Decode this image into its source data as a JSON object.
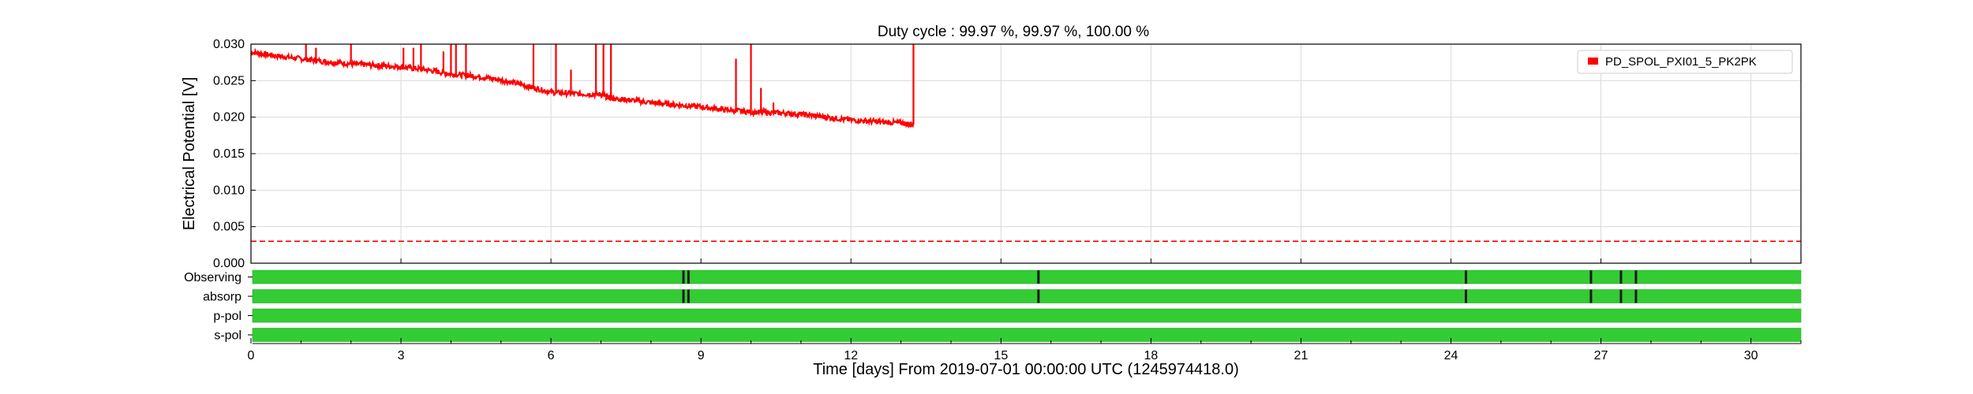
{
  "chart_data": {
    "type": "line",
    "title": "Duty cycle : 99.97 %, 99.97 %, 100.00 %",
    "xlabel": "Time [days] From 2019-07-01 00:00:00 UTC (1245974418.0)",
    "ylabel": "Electrical Potential [V]",
    "xlim": [
      0,
      31
    ],
    "ylim": [
      0,
      0.03
    ],
    "xticks": [
      0,
      3,
      6,
      9,
      12,
      15,
      18,
      21,
      24,
      27,
      30
    ],
    "xtick_labels": [
      "0",
      "3",
      "6",
      "9",
      "12",
      "15",
      "18",
      "21",
      "24",
      "27",
      "30"
    ],
    "yticks": [
      0.0,
      0.005,
      0.01,
      0.015,
      0.02,
      0.025,
      0.03
    ],
    "ytick_labels": [
      "0.000",
      "0.005",
      "0.010",
      "0.015",
      "0.020",
      "0.025",
      "0.030"
    ],
    "grid": true,
    "legend_position": "top-right",
    "series": [
      {
        "name": "PD_SPOL_PXI01_5_PK2PK",
        "color": "#ff0000",
        "x": [
          0,
          0.5,
          1,
          1.5,
          2,
          2.5,
          3,
          3.5,
          4,
          4.5,
          5,
          5.5,
          6,
          6.5,
          7,
          7.2,
          7.5,
          8,
          8.5,
          9,
          9.5,
          10,
          10.5,
          11,
          11.5,
          12,
          12.5,
          13,
          13.25
        ],
        "y": [
          0.0289,
          0.0284,
          0.028,
          0.0276,
          0.0273,
          0.0271,
          0.0269,
          0.0265,
          0.0259,
          0.0256,
          0.0251,
          0.0243,
          0.0234,
          0.0232,
          0.0231,
          0.0226,
          0.0224,
          0.022,
          0.0217,
          0.0214,
          0.021,
          0.0207,
          0.0206,
          0.0204,
          0.02,
          0.0196,
          0.0194,
          0.0192,
          0.019
        ],
        "spikes": [
          {
            "x": 1.1,
            "y": 0.03
          },
          {
            "x": 1.3,
            "y": 0.0295
          },
          {
            "x": 2.0,
            "y": 0.03
          },
          {
            "x": 3.05,
            "y": 0.0295
          },
          {
            "x": 3.25,
            "y": 0.0295
          },
          {
            "x": 3.4,
            "y": 0.03
          },
          {
            "x": 3.85,
            "y": 0.029
          },
          {
            "x": 4.0,
            "y": 0.03
          },
          {
            "x": 4.1,
            "y": 0.03
          },
          {
            "x": 4.3,
            "y": 0.03
          },
          {
            "x": 5.65,
            "y": 0.03
          },
          {
            "x": 6.1,
            "y": 0.03
          },
          {
            "x": 6.4,
            "y": 0.0265
          },
          {
            "x": 6.9,
            "y": 0.03
          },
          {
            "x": 7.05,
            "y": 0.03
          },
          {
            "x": 7.2,
            "y": 0.03
          },
          {
            "x": 9.7,
            "y": 0.028
          },
          {
            "x": 10.0,
            "y": 0.03
          },
          {
            "x": 10.2,
            "y": 0.024
          },
          {
            "x": 10.45,
            "y": 0.022
          },
          {
            "x": 13.25,
            "y": 0.03
          }
        ]
      }
    ],
    "threshold": {
      "y": 0.003,
      "color": "#ff0000",
      "style": "dashed"
    },
    "flags": {
      "labels": [
        "Observing",
        "absorp",
        "p-pol",
        "s-pol"
      ],
      "color": "#33cc33",
      "gap_color": "#1a1a1a",
      "gaps": [
        [
          8.65,
          8.75,
          15.75,
          24.3,
          26.8,
          27.4,
          27.7
        ],
        [
          8.65,
          8.75,
          15.75,
          24.3,
          26.8,
          27.4,
          27.7
        ],
        [],
        []
      ]
    }
  }
}
